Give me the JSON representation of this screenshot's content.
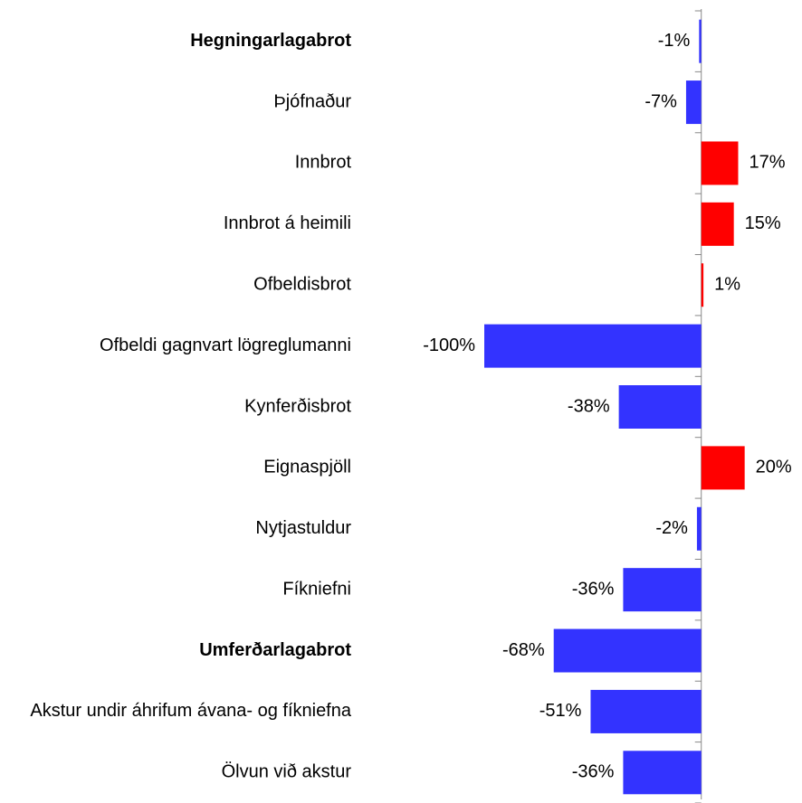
{
  "chart_data": {
    "type": "hbar",
    "categories": [
      "Hegningarlagabrot",
      "Þjófnaður",
      "Innbrot",
      "Innbrot á heimili",
      "Ofbeldisbrot",
      "Ofbeldi gagnvart lögreglumanni",
      "Kynferðisbrot",
      "Eignaspjöll",
      "Nytjastuldur",
      "Fíkniefni",
      "Umferðarlagabrot",
      "Akstur undir áhrifum ávana- og fíkniefna",
      "Ölvun við akstur"
    ],
    "values": [
      -1,
      -7,
      17,
      15,
      1,
      -100,
      -38,
      20,
      -2,
      -36,
      -68,
      -51,
      -36
    ],
    "value_labels": [
      "-1%",
      "-7%",
      "17%",
      "15%",
      "1%",
      "-100%",
      "-38%",
      "20%",
      "-2%",
      "-36%",
      "-68%",
      "-51%",
      "-36%"
    ],
    "bold_categories": [
      0,
      10
    ],
    "colors": {
      "positive": "#ff0000",
      "negative": "#3333ff"
    },
    "xlim": [
      -100,
      46
    ]
  }
}
